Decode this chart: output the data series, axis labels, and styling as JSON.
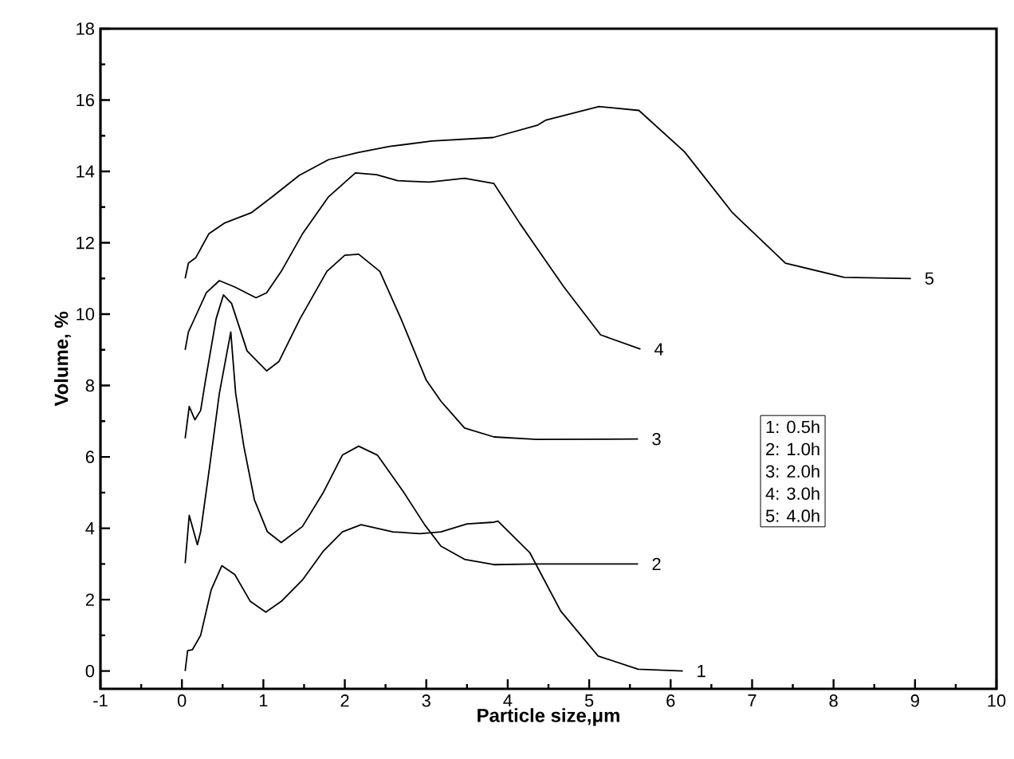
{
  "chart_data": {
    "type": "line",
    "xlabel": "Particle size,μm",
    "ylabel": "Volume, %",
    "xlim": [
      -1,
      10
    ],
    "ylim": [
      -0.5,
      18
    ],
    "xticks": [
      -1,
      0,
      1,
      2,
      3,
      4,
      5,
      6,
      7,
      8,
      9,
      10
    ],
    "yticks": [
      0,
      2,
      4,
      6,
      8,
      10,
      12,
      14,
      16,
      18
    ],
    "grid": false,
    "legend": false,
    "marker": "none",
    "line_style": "solid",
    "series": [
      {
        "name": "1",
        "color": "#000000",
        "x": [
          0.04,
          0.07,
          0.13,
          0.23,
          0.36,
          0.49,
          0.65,
          0.84,
          1.03,
          1.22,
          1.48,
          1.74,
          1.97,
          2.2,
          2.59,
          2.92,
          3.18,
          3.5,
          3.83,
          3.88,
          4.27,
          4.65,
          5.11,
          5.6,
          6.15
        ],
        "values": [
          0,
          0.57,
          0.6,
          1.0,
          2.28,
          2.95,
          2.7,
          1.95,
          1.65,
          1.95,
          2.55,
          3.37,
          3.9,
          4.1,
          3.9,
          3.85,
          3.9,
          4.12,
          4.17,
          4.2,
          3.32,
          1.68,
          0.42,
          0.05,
          0
        ]
      },
      {
        "name": "2",
        "color": "#000000",
        "x": [
          0.04,
          0.09,
          0.19,
          0.23,
          0.33,
          0.46,
          0.6,
          0.66,
          0.76,
          0.89,
          1.05,
          1.22,
          1.48,
          1.74,
          1.97,
          2.17,
          2.4,
          2.72,
          2.98,
          3.18,
          3.47,
          3.83,
          4.35,
          5.6
        ],
        "values": [
          3.02,
          4.36,
          3.54,
          3.9,
          5.55,
          7.78,
          9.5,
          7.78,
          6.3,
          4.8,
          3.9,
          3.6,
          4.05,
          5.02,
          6.05,
          6.3,
          6.05,
          5.02,
          4.1,
          3.5,
          3.13,
          2.98,
          3.0,
          3.0
        ]
      },
      {
        "name": "3",
        "color": "#000000",
        "x": [
          0.04,
          0.09,
          0.16,
          0.23,
          0.29,
          0.42,
          0.51,
          0.61,
          0.8,
          1.04,
          1.19,
          1.45,
          1.78,
          2.0,
          2.17,
          2.43,
          2.69,
          3.0,
          3.18,
          3.47,
          3.83,
          4.35,
          5.6
        ],
        "values": [
          6.52,
          7.41,
          7.04,
          7.3,
          8.15,
          9.87,
          10.54,
          10.3,
          8.97,
          8.41,
          8.67,
          9.87,
          11.2,
          11.65,
          11.68,
          11.2,
          9.87,
          8.15,
          7.56,
          6.81,
          6.56,
          6.49,
          6.5
        ]
      },
      {
        "name": "4",
        "color": "#000000",
        "x": [
          0.04,
          0.08,
          0.14,
          0.3,
          0.46,
          0.65,
          0.91,
          1.04,
          1.22,
          1.48,
          1.8,
          2.13,
          2.39,
          2.65,
          3.04,
          3.47,
          3.83,
          4.15,
          4.35,
          4.69,
          5.14,
          5.63
        ],
        "values": [
          9.0,
          9.5,
          9.8,
          10.6,
          10.94,
          10.76,
          10.46,
          10.6,
          11.2,
          12.25,
          13.29,
          13.96,
          13.91,
          13.74,
          13.7,
          13.81,
          13.66,
          12.54,
          11.88,
          10.76,
          9.42,
          9.02
        ]
      },
      {
        "name": "5",
        "color": "#000000",
        "x": [
          0.04,
          0.08,
          0.17,
          0.33,
          0.52,
          0.85,
          1.11,
          1.44,
          1.8,
          2.16,
          2.55,
          3.07,
          3.82,
          4.37,
          4.47,
          5.12,
          5.61,
          6.17,
          6.76,
          7.41,
          8.13,
          8.95
        ],
        "values": [
          11.0,
          11.43,
          11.58,
          12.25,
          12.55,
          12.84,
          13.29,
          13.89,
          14.33,
          14.53,
          14.7,
          14.85,
          14.95,
          15.3,
          15.44,
          15.82,
          15.71,
          14.55,
          12.84,
          11.43,
          11.03,
          11.0
        ]
      }
    ],
    "annotations": [
      "1: 0.5h",
      "2: 1.0h",
      "3: 2.0h",
      "4: 3.0h",
      "5: 4.0h"
    ]
  }
}
